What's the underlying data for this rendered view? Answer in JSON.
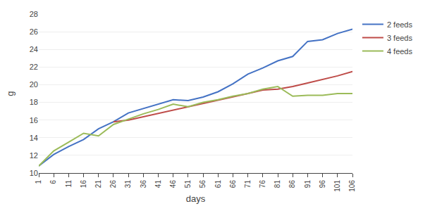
{
  "chart_data": {
    "type": "line",
    "xlabel": "days",
    "ylabel": "g",
    "xlim": [
      1,
      106
    ],
    "xticks": [
      1,
      6,
      11,
      16,
      21,
      26,
      31,
      36,
      41,
      46,
      51,
      56,
      61,
      66,
      71,
      76,
      81,
      86,
      91,
      96,
      101,
      106
    ],
    "ylim": [
      10,
      28
    ],
    "yticks": [
      10,
      12,
      14,
      16,
      18,
      20,
      22,
      24,
      26,
      28
    ],
    "grid": "y",
    "legend": "right",
    "series": [
      {
        "name": "2 feeds",
        "color": "#4472c4",
        "x": [
          1,
          6,
          11,
          16,
          21,
          26,
          31,
          36,
          41,
          46,
          51,
          56,
          61,
          66,
          71,
          76,
          81,
          86,
          91,
          96,
          101,
          106
        ],
        "values": [
          10.8,
          12.1,
          13.0,
          13.8,
          15.0,
          15.8,
          16.8,
          17.3,
          17.8,
          18.3,
          18.2,
          18.6,
          19.2,
          20.1,
          21.2,
          21.9,
          22.7,
          23.2,
          24.9,
          25.1,
          25.8,
          26.3
        ]
      },
      {
        "name": "3 feeds",
        "color": "#be4b48",
        "x": [
          26,
          31,
          71,
          76,
          81,
          86,
          91,
          96,
          101,
          106
        ],
        "values": [
          15.8,
          16.0,
          19.0,
          19.4,
          19.5,
          19.8,
          20.2,
          20.6,
          21.0,
          21.5
        ]
      },
      {
        "name": "4 feeds",
        "color": "#9bbb59",
        "x": [
          1,
          6,
          11,
          16,
          21,
          26,
          31,
          36,
          41,
          46,
          51,
          56,
          61,
          66,
          71,
          76,
          81,
          86,
          91,
          96,
          101,
          106
        ],
        "values": [
          10.8,
          12.5,
          13.5,
          14.5,
          14.2,
          15.5,
          16.1,
          16.7,
          17.2,
          17.8,
          17.5,
          18.0,
          18.3,
          18.7,
          19.0,
          19.5,
          19.8,
          18.7,
          18.8,
          18.8,
          19.0,
          19.0
        ]
      }
    ]
  }
}
